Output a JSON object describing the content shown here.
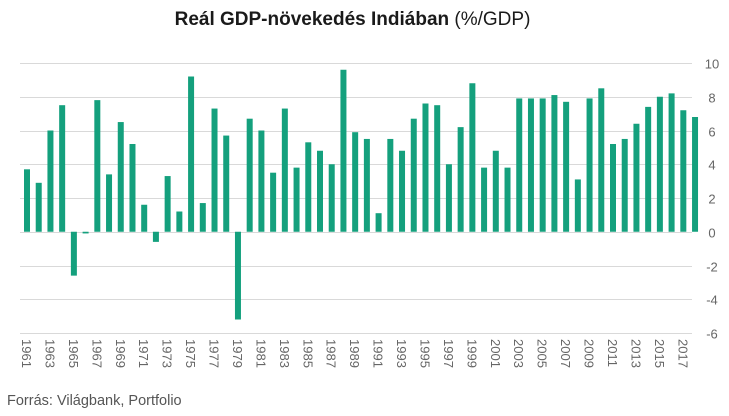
{
  "chart_data": {
    "type": "bar",
    "title": "Reál GDP-növekedés Indiában",
    "title_unit": "(%/GDP)",
    "source": "Forrás: Világbank, Portfolio",
    "color": "#14a07d",
    "ylim": [
      -6,
      10
    ],
    "yticks": [
      -6,
      -4,
      -2,
      0,
      2,
      4,
      6,
      8,
      10
    ],
    "y_axis_side": "right",
    "grid": true,
    "categories": [
      "1961",
      "1962",
      "1963",
      "1964",
      "1965",
      "1966",
      "1967",
      "1968",
      "1969",
      "1970",
      "1971",
      "1972",
      "1973",
      "1974",
      "1975",
      "1976",
      "1977",
      "1978",
      "1979",
      "1980",
      "1981",
      "1982",
      "1983",
      "1984",
      "1985",
      "1986",
      "1987",
      "1988",
      "1989",
      "1990",
      "1991",
      "1992",
      "1993",
      "1994",
      "1995",
      "1996",
      "1997",
      "1998",
      "1999",
      "2000",
      "2001",
      "2002",
      "2003",
      "2004",
      "2005",
      "2006",
      "2007",
      "2008",
      "2009",
      "2010",
      "2011",
      "2012",
      "2013",
      "2014",
      "2015",
      "2016",
      "2017",
      "2018"
    ],
    "xtick_labels": [
      "1961",
      "1963",
      "1965",
      "1967",
      "1969",
      "1971",
      "1973",
      "1975",
      "1977",
      "1979",
      "1981",
      "1983",
      "1985",
      "1987",
      "1989",
      "1991",
      "1993",
      "1995",
      "1997",
      "1999",
      "2001",
      "2003",
      "2005",
      "2007",
      "2009",
      "2011",
      "2013",
      "2015",
      "2017"
    ],
    "values": [
      3.7,
      2.9,
      6.0,
      7.5,
      -2.6,
      -0.1,
      7.8,
      3.4,
      6.5,
      5.2,
      1.6,
      -0.6,
      3.3,
      1.2,
      9.2,
      1.7,
      7.3,
      5.7,
      -5.2,
      6.7,
      6.0,
      3.5,
      7.3,
      3.8,
      5.3,
      4.8,
      4.0,
      9.6,
      5.9,
      5.5,
      1.1,
      5.5,
      4.8,
      6.7,
      7.6,
      7.5,
      4.0,
      6.2,
      8.8,
      3.8,
      4.8,
      3.8,
      7.9,
      7.9,
      7.9,
      8.1,
      7.7,
      3.1,
      7.9,
      8.5,
      5.2,
      5.5,
      6.4,
      7.4,
      8.0,
      8.2,
      7.2,
      6.8
    ]
  }
}
